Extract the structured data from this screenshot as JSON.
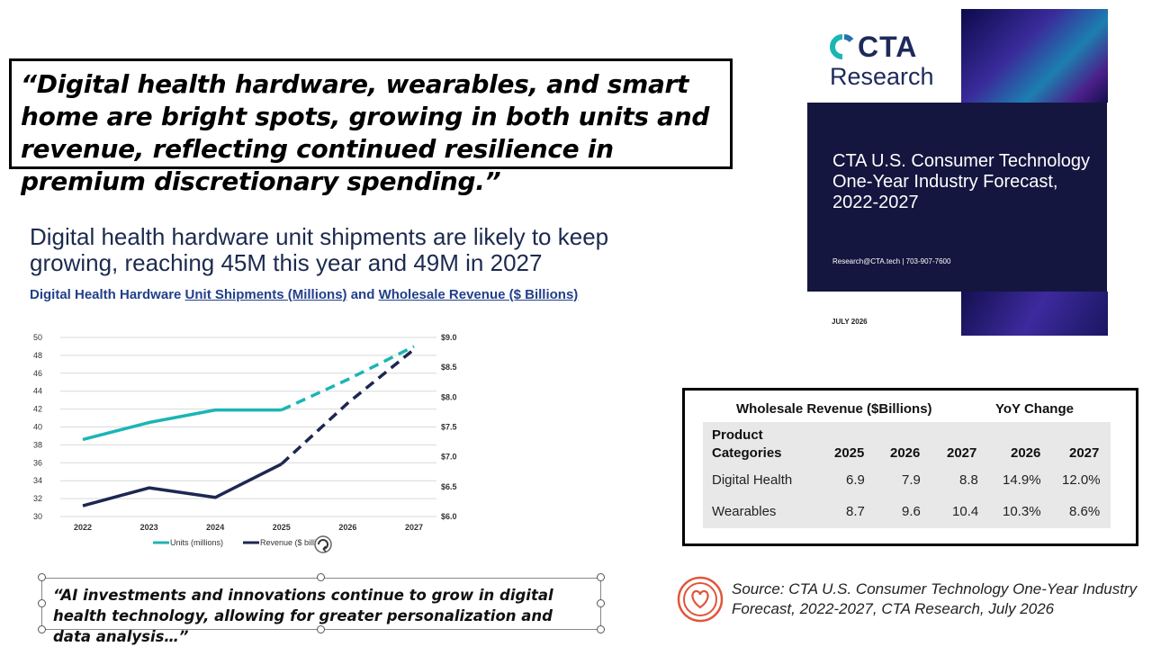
{
  "quote_top": "“Digital health hardware, wearables, and smart home are bright spots, growing in both units and revenue, reflecting continued resilience in premium discretionary spending.”",
  "headline": "Digital health hardware unit shipments are likely to keep growing, reaching 45M this year and 49M in 2027",
  "subhead": {
    "prefix": "Digital Health Hardware ",
    "units_link": "Unit Shipments (Millions)",
    "middle": " and ",
    "revenue_link": "Wholesale Revenue ($ Billions)"
  },
  "chart_data": {
    "type": "line",
    "x": [
      "2022",
      "2023",
      "2024",
      "2025",
      "2026",
      "2027"
    ],
    "y_left": {
      "ticks": [
        "30",
        "32",
        "34",
        "36",
        "38",
        "40",
        "42",
        "44",
        "46",
        "48",
        "50"
      ],
      "range": [
        30,
        50
      ]
    },
    "y_right": {
      "ticks": [
        "$6.0",
        "$6.5",
        "$7.0",
        "$7.5",
        "$8.0",
        "$8.5",
        "$9.0"
      ],
      "range": [
        6.0,
        9.0
      ]
    },
    "series": [
      {
        "name": "Units (millions)",
        "color": "#1bb5b5",
        "axis": "left",
        "values": [
          38.6,
          40.5,
          41.9,
          41.9,
          45.3,
          49.0
        ],
        "forecast_from_index": 3
      },
      {
        "name": "Revenue ($ billions)",
        "color": "#1c2752",
        "axis": "right",
        "values": [
          6.18,
          6.48,
          6.32,
          6.88,
          7.9,
          8.8
        ],
        "forecast_from_index": 3
      }
    ],
    "legend": "bottom",
    "grid": true
  },
  "cover": {
    "logo_cta": "CTA",
    "logo_research": "Research",
    "title": "CTA U.S. Consumer Technology One-Year Industry Forecast, 2022-2027",
    "contact": "Research@CTA.tech  | 703-907-7600",
    "date": "JULY 2026",
    "colors": {
      "band": "#14163f",
      "logo": "#1d2a5a",
      "logo_accent": "#1bb5b5"
    }
  },
  "table": {
    "revenue_header": "Wholesale Revenue ($Billions)",
    "yoy_header": "YoY Change",
    "col_header_line1": "Product",
    "col_header_line2": "Categories",
    "columns": [
      "2025",
      "2026",
      "2027",
      "2026",
      "2027"
    ],
    "rows": [
      {
        "label": "Digital Health",
        "values": [
          "6.9",
          "7.9",
          "8.8",
          "14.9%",
          "12.0%"
        ]
      },
      {
        "label": "Wearables",
        "values": [
          "8.7",
          "9.6",
          "10.4",
          "10.3%",
          "8.6%"
        ]
      }
    ]
  },
  "quote_bottom": "“AI investments and innovations continue to grow in digital health technology, allowing for greater personalization and data analysis…”",
  "source": "Source: CTA U.S. Consumer Technology One-Year Industry Forecast, 2022-2027, CTA Research, July 2026",
  "icons": {
    "source": "heart-rings-icon",
    "rotate": "rotate-handle-icon"
  },
  "colors": {
    "accent_red": "#e0563c"
  }
}
